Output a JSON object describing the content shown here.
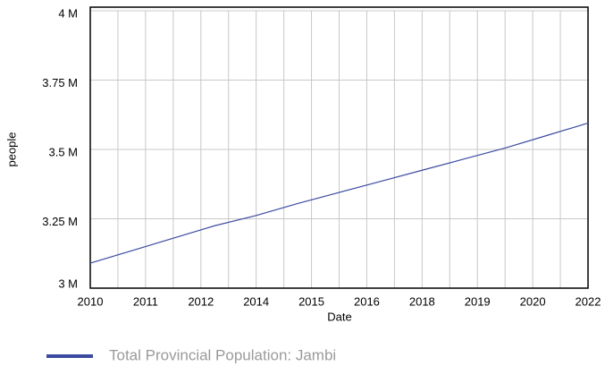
{
  "chart_data": {
    "type": "line",
    "x_label": "Date",
    "y_label": "people",
    "x": [
      2010,
      2011,
      2012,
      2013,
      2014,
      2015,
      2016,
      2017,
      2018,
      2019,
      2020,
      2021,
      2022
    ],
    "series": [
      {
        "name": "Total Provincial Population: Jambi",
        "color": "#3b4ba0",
        "values": [
          3090000,
          3135000,
          3180000,
          3225000,
          3262000,
          3305000,
          3345000,
          3385000,
          3425000,
          3465000,
          3505000,
          3550000,
          3595000
        ]
      }
    ],
    "xlim": [
      2010,
      2022
    ],
    "xticks": [
      2010,
      {
        "value": 2011.333,
        "label": "2011"
      },
      {
        "value": 2012.667,
        "label": "2012"
      },
      2014,
      {
        "value": 2015.333,
        "label": "2015"
      },
      {
        "value": 2016.667,
        "label": "2016"
      },
      2018,
      {
        "value": 2019.333,
        "label": "2019"
      },
      {
        "value": 2020.667,
        "label": "2020"
      },
      2022
    ],
    "ylim": [
      3000000,
      4000000
    ],
    "yticks": [
      {
        "value": 3000000,
        "label": "3 M"
      },
      {
        "value": 3250000,
        "label": "3.25 M"
      },
      {
        "value": 3500000,
        "label": "3.5 M"
      },
      {
        "value": 3750000,
        "label": "3.75 M"
      },
      {
        "value": 4000000,
        "label": "4 M"
      }
    ],
    "grid": true,
    "legend": "bottom-left"
  }
}
